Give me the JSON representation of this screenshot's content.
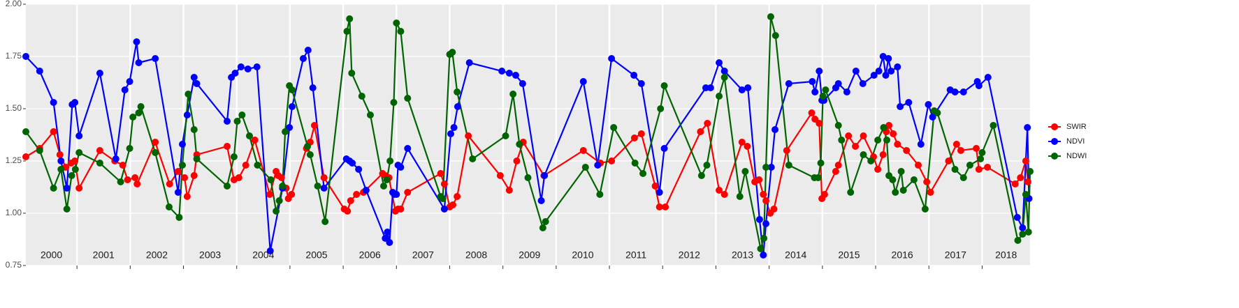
{
  "chart_data": {
    "type": "line",
    "xlim": [
      2000.04,
      2018.9
    ],
    "xticks": [
      2000,
      2001,
      2002,
      2003,
      2004,
      2005,
      2006,
      2007,
      2008,
      2009,
      2010,
      2011,
      2012,
      2013,
      2014,
      2015,
      2016,
      2017,
      2018
    ],
    "ylim": [
      0.75,
      2.0
    ],
    "yticks": [
      0.75,
      {
        "value": 1.0,
        "label": "1.00"
      },
      1.25,
      {
        "value": 1.5,
        "label": "1.50"
      },
      1.75,
      {
        "value": 2.0,
        "label": "2.00"
      }
    ],
    "grid": true,
    "legend": "right",
    "series": [
      {
        "name": "SWIR",
        "color": "#ff0000",
        "x": [
          2000.04,
          2000.3,
          2000.56,
          2000.68,
          2000.79,
          2000.89,
          2000.96,
          2001.04,
          2001.43,
          2001.71,
          2001.86,
          2001.95,
          2002.09,
          2002.13,
          2002.47,
          2002.74,
          2002.9,
          2003.02,
          2003.07,
          2003.2,
          2003.25,
          2003.82,
          2003.95,
          2004.04,
          2004.17,
          2004.34,
          2004.62,
          2004.74,
          2004.78,
          2004.84,
          2004.93,
          2004.97,
          2005.03,
          2005.31,
          2005.38,
          2005.46,
          2005.64,
          2006.02,
          2006.08,
          2006.14,
          2006.25,
          2006.38,
          2006.74,
          2006.79,
          2006.86,
          2006.98,
          2007.03,
          2007.08,
          2007.21,
          2007.83,
          2007.9,
          2008.0,
          2008.06,
          2008.14,
          2008.35,
          2008.95,
          2009.12,
          2009.26,
          2009.38,
          2009.77,
          2010.51,
          2010.83,
          2011.04,
          2011.47,
          2011.6,
          2011.86,
          2011.94,
          2012.05,
          2012.71,
          2012.84,
          2013.06,
          2013.16,
          2013.49,
          2013.59,
          2013.73,
          2013.81,
          2013.89,
          2013.94,
          2014.02,
          2014.09,
          2014.33,
          2014.8,
          2014.86,
          2014.94,
          2014.99,
          2015.04,
          2015.25,
          2015.3,
          2015.49,
          2015.62,
          2015.77,
          2015.96,
          2016.04,
          2016.14,
          2016.2,
          2016.25,
          2016.33,
          2016.41,
          2016.58,
          2016.8,
          2016.96,
          2017.03,
          2017.37,
          2017.52,
          2017.6,
          2017.89,
          2017.94,
          2018.1,
          2018.62,
          2018.72,
          2018.82,
          2018.86
        ],
        "values": [
          1.27,
          1.31,
          1.39,
          1.28,
          1.22,
          1.24,
          1.25,
          1.12,
          1.3,
          1.25,
          1.23,
          1.16,
          1.17,
          1.14,
          1.34,
          1.14,
          1.2,
          1.17,
          1.08,
          1.18,
          1.28,
          1.32,
          1.16,
          1.17,
          1.23,
          1.35,
          1.09,
          1.2,
          1.18,
          1.17,
          1.12,
          1.07,
          1.09,
          1.31,
          1.34,
          1.42,
          1.17,
          1.02,
          1.01,
          1.06,
          1.09,
          1.1,
          1.19,
          1.18,
          1.17,
          1.01,
          1.02,
          1.02,
          1.1,
          1.19,
          1.14,
          1.03,
          1.04,
          1.08,
          1.37,
          1.18,
          1.11,
          1.25,
          1.34,
          1.18,
          1.3,
          1.24,
          1.25,
          1.36,
          1.38,
          1.13,
          1.03,
          1.03,
          1.39,
          1.43,
          1.11,
          1.09,
          1.34,
          1.32,
          1.15,
          1.16,
          1.09,
          1.06,
          1.0,
          1.02,
          1.3,
          1.48,
          1.45,
          1.43,
          1.07,
          1.09,
          1.2,
          1.23,
          1.37,
          1.32,
          1.37,
          1.27,
          1.21,
          1.28,
          1.39,
          1.42,
          1.38,
          1.33,
          1.3,
          1.23,
          1.15,
          1.1,
          1.25,
          1.33,
          1.3,
          1.31,
          1.21,
          1.22,
          1.14,
          1.17,
          1.25,
          1.15
        ]
      },
      {
        "name": "NDVI",
        "color": "#0000ff",
        "x": [
          2000.04,
          2000.3,
          2000.56,
          2000.7,
          2000.81,
          2000.91,
          2000.96,
          2001.04,
          2001.43,
          2001.73,
          2001.9,
          2001.99,
          2002.12,
          2002.16,
          2002.47,
          2002.9,
          2002.98,
          2003.07,
          2003.2,
          2003.25,
          2003.82,
          2003.9,
          2003.97,
          2004.08,
          2004.21,
          2004.38,
          2004.63,
          2004.86,
          2004.99,
          2005.04,
          2005.25,
          2005.34,
          2005.43,
          2005.64,
          2006.06,
          2006.12,
          2006.17,
          2006.29,
          2006.43,
          2006.79,
          2006.83,
          2006.87,
          2006.93,
          2006.96,
          2007.0,
          2007.03,
          2007.08,
          2007.21,
          2007.9,
          2008.02,
          2008.08,
          2008.15,
          2008.37,
          2008.98,
          2009.12,
          2009.24,
          2009.37,
          2009.72,
          2009.78,
          2010.51,
          2010.78,
          2011.04,
          2011.46,
          2011.6,
          2011.94,
          2012.03,
          2012.81,
          2012.9,
          2013.06,
          2013.16,
          2013.49,
          2013.6,
          2013.82,
          2013.89,
          2013.94,
          2014.04,
          2014.11,
          2014.37,
          2014.81,
          2014.86,
          2014.94,
          2014.99,
          2015.03,
          2015.25,
          2015.3,
          2015.46,
          2015.63,
          2015.76,
          2015.97,
          2016.06,
          2016.14,
          2016.19,
          2016.24,
          2016.29,
          2016.41,
          2016.46,
          2016.62,
          2016.85,
          2016.99,
          2017.07,
          2017.4,
          2017.49,
          2017.65,
          2017.91,
          2017.94,
          2018.11,
          2018.66,
          2018.76,
          2018.85,
          2018.88
        ],
        "values": [
          1.75,
          1.68,
          1.53,
          1.25,
          1.12,
          1.52,
          1.53,
          1.37,
          1.67,
          1.26,
          1.59,
          1.63,
          1.82,
          1.72,
          1.74,
          1.1,
          1.33,
          1.47,
          1.65,
          1.62,
          1.44,
          1.65,
          1.67,
          1.7,
          1.69,
          1.7,
          0.82,
          1.12,
          1.41,
          1.51,
          1.74,
          1.78,
          1.6,
          1.12,
          1.26,
          1.25,
          1.24,
          1.21,
          1.11,
          0.88,
          0.91,
          0.86,
          1.1,
          1.09,
          1.09,
          1.23,
          1.22,
          1.31,
          1.02,
          1.38,
          1.41,
          1.51,
          1.72,
          1.68,
          1.67,
          1.66,
          1.62,
          1.06,
          1.18,
          1.63,
          1.23,
          1.74,
          1.66,
          1.62,
          1.1,
          1.31,
          1.6,
          1.6,
          1.72,
          1.68,
          1.59,
          1.6,
          0.97,
          0.8,
          0.95,
          1.22,
          1.4,
          1.62,
          1.63,
          1.58,
          1.68,
          1.54,
          1.54,
          1.6,
          1.62,
          1.58,
          1.68,
          1.62,
          1.66,
          1.68,
          1.75,
          1.66,
          1.74,
          1.68,
          1.7,
          1.51,
          1.53,
          1.33,
          1.52,
          1.46,
          1.59,
          1.58,
          1.58,
          1.63,
          1.61,
          1.65,
          0.98,
          0.93,
          1.41,
          1.07
        ]
      },
      {
        "name": "NDWI",
        "color": "#006400",
        "x": [
          2000.04,
          2000.3,
          2000.56,
          2000.7,
          2000.81,
          2000.9,
          2000.97,
          2001.04,
          2001.43,
          2001.82,
          2001.99,
          2002.05,
          2002.16,
          2002.2,
          2002.47,
          2002.73,
          2002.92,
          2002.98,
          2003.09,
          2003.2,
          2003.25,
          2003.82,
          2003.95,
          2004.01,
          2004.1,
          2004.24,
          2004.39,
          2004.64,
          2004.74,
          2004.8,
          2004.86,
          2004.91,
          2004.99,
          2005.04,
          2005.33,
          2005.38,
          2005.52,
          2005.66,
          2006.07,
          2006.12,
          2006.16,
          2006.35,
          2006.51,
          2006.76,
          2006.82,
          2006.88,
          2006.95,
          2007.0,
          2007.08,
          2007.21,
          2007.83,
          2007.87,
          2008.0,
          2008.05,
          2008.14,
          2008.43,
          2009.05,
          2009.19,
          2009.31,
          2009.47,
          2009.75,
          2009.8,
          2010.55,
          2010.82,
          2011.08,
          2011.48,
          2011.63,
          2011.96,
          2012.03,
          2012.73,
          2012.83,
          2013.06,
          2013.16,
          2013.45,
          2013.55,
          2013.84,
          2013.9,
          2013.94,
          2014.03,
          2014.12,
          2014.37,
          2014.85,
          2014.92,
          2014.97,
          2015.01,
          2015.06,
          2015.3,
          2015.36,
          2015.53,
          2015.77,
          2015.91,
          2016.04,
          2016.15,
          2016.21,
          2016.25,
          2016.32,
          2016.37,
          2016.48,
          2016.52,
          2016.72,
          2016.93,
          2017.1,
          2017.16,
          2017.49,
          2017.65,
          2017.77,
          2017.97,
          2018.0,
          2018.21,
          2018.67,
          2018.76,
          2018.82,
          2018.87,
          2018.9
        ],
        "values": [
          1.39,
          1.3,
          1.12,
          1.21,
          1.02,
          1.18,
          1.21,
          1.29,
          1.24,
          1.15,
          1.31,
          1.46,
          1.48,
          1.51,
          1.29,
          1.03,
          0.98,
          1.23,
          1.57,
          1.4,
          1.26,
          1.13,
          1.27,
          1.44,
          1.47,
          1.37,
          1.23,
          1.16,
          1.01,
          1.06,
          1.13,
          1.39,
          1.61,
          1.59,
          1.32,
          1.28,
          1.13,
          0.96,
          1.87,
          1.93,
          1.67,
          1.56,
          1.47,
          1.13,
          1.16,
          1.25,
          1.53,
          1.91,
          1.87,
          1.55,
          1.08,
          1.07,
          1.76,
          1.77,
          1.58,
          1.26,
          1.37,
          1.57,
          1.33,
          1.17,
          0.93,
          0.96,
          1.22,
          1.09,
          1.41,
          1.24,
          1.19,
          1.5,
          1.61,
          1.18,
          1.23,
          1.56,
          1.65,
          1.08,
          1.2,
          0.83,
          0.88,
          1.22,
          1.94,
          1.85,
          1.23,
          1.17,
          1.17,
          1.24,
          1.56,
          1.59,
          1.42,
          1.35,
          1.1,
          1.28,
          1.25,
          1.35,
          1.41,
          1.35,
          1.18,
          1.16,
          1.1,
          1.2,
          1.11,
          1.16,
          1.02,
          1.49,
          1.48,
          1.21,
          1.17,
          1.23,
          1.26,
          1.29,
          1.42,
          0.87,
          0.9,
          1.09,
          0.91,
          1.2
        ]
      }
    ]
  }
}
